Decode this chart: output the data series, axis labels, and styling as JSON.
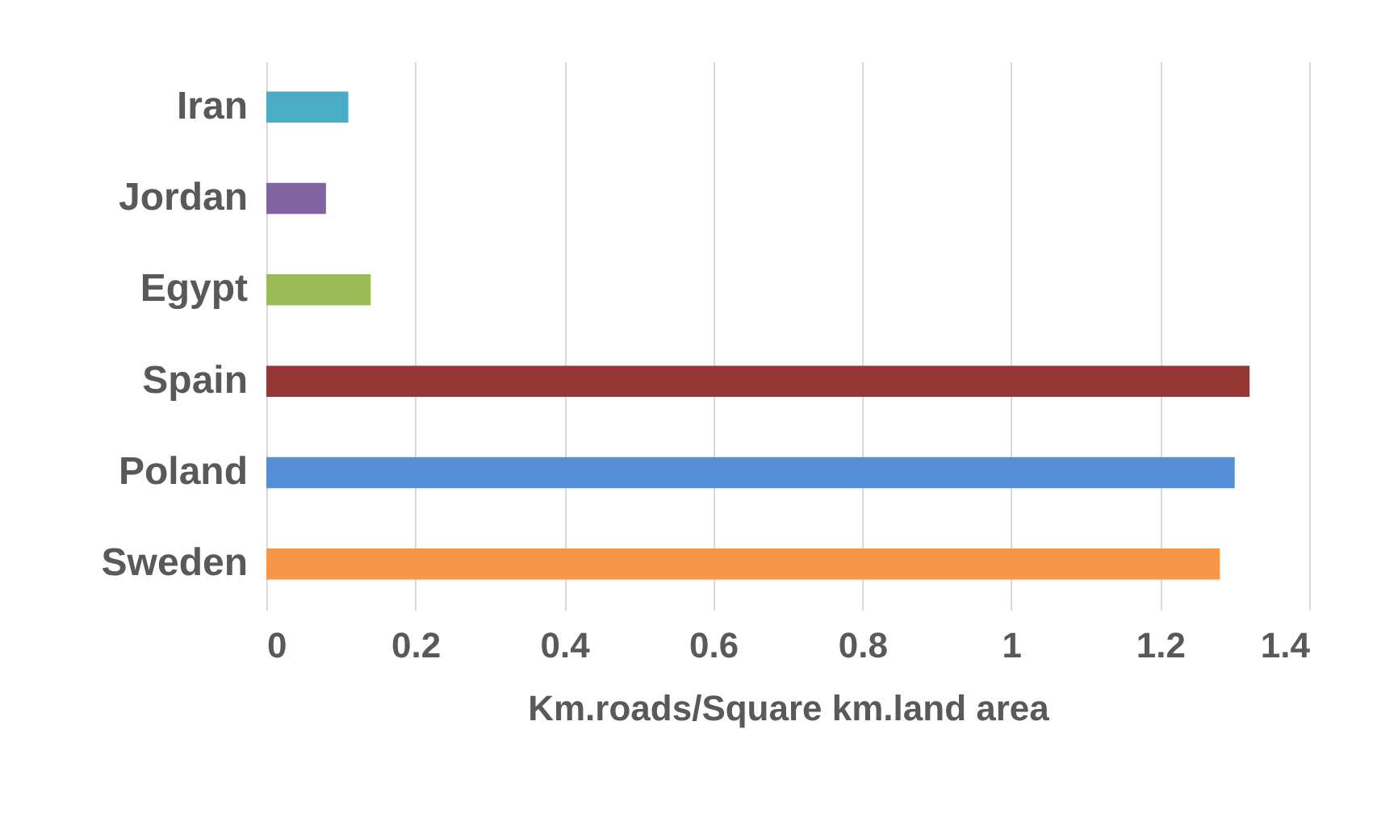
{
  "chart_data": {
    "type": "bar",
    "orientation": "horizontal",
    "xlabel": "Km.roads/Square km.land area",
    "categories": [
      "Iran",
      "Jordan",
      "Egypt",
      "Spain",
      "Poland",
      "Sweden"
    ],
    "values": [
      0.11,
      0.08,
      0.14,
      1.32,
      1.3,
      1.28
    ],
    "colors": [
      "#4bacc6",
      "#8064a2",
      "#9bbb59",
      "#953735",
      "#558ed5",
      "#f79646"
    ],
    "xlim": [
      0,
      1.4
    ],
    "xticks": [
      0,
      0.2,
      0.4,
      0.6,
      0.8,
      1,
      1.2,
      1.4
    ],
    "grid": "x"
  }
}
